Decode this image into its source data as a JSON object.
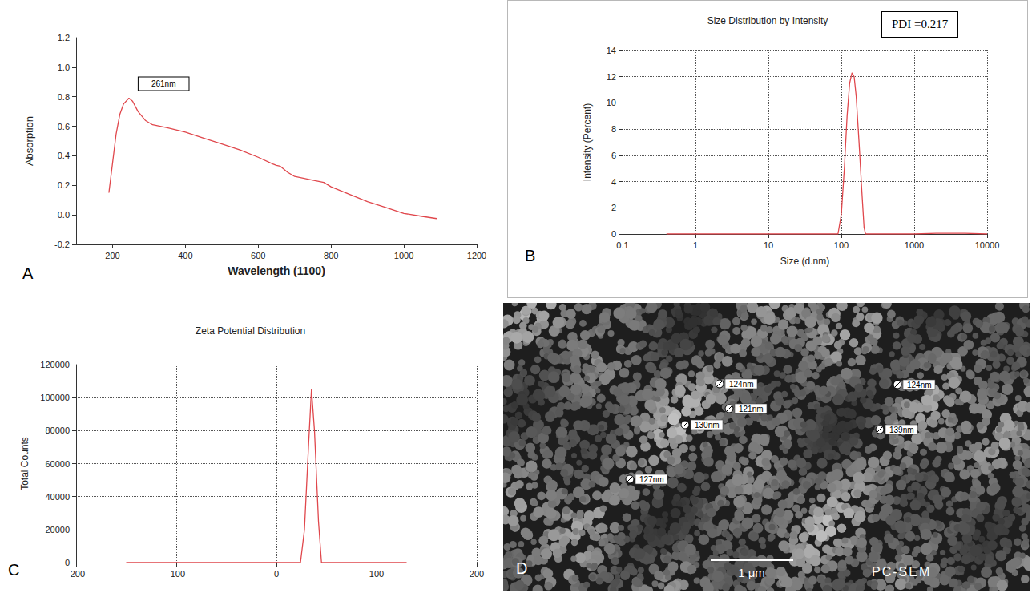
{
  "chart_data": [
    {
      "panel": "A",
      "type": "line",
      "xlabel": "Wavelength (1100)",
      "ylabel": "Absorption",
      "x": [
        190,
        200,
        210,
        220,
        230,
        245,
        255,
        270,
        290,
        310,
        350,
        400,
        450,
        500,
        550,
        600,
        640,
        650,
        660,
        680,
        700,
        750,
        780,
        800,
        850,
        900,
        950,
        1000,
        1050,
        1090
      ],
      "values": [
        0.15,
        0.35,
        0.55,
        0.68,
        0.75,
        0.79,
        0.77,
        0.7,
        0.64,
        0.61,
        0.59,
        0.56,
        0.52,
        0.48,
        0.44,
        0.39,
        0.345,
        0.335,
        0.33,
        0.29,
        0.26,
        0.235,
        0.22,
        0.19,
        0.14,
        0.09,
        0.05,
        0.01,
        -0.01,
        -0.025
      ],
      "color": "#e0474c",
      "xlim": [
        100,
        1200
      ],
      "xticks": [
        200,
        400,
        600,
        800,
        1000,
        1200
      ],
      "ylim": [
        -0.2,
        1.2
      ],
      "yticks": [
        -0.2,
        {
          "value": 0,
          "label": "0.0"
        },
        0.2,
        0.4,
        0.6,
        0.8,
        {
          "value": 1,
          "label": "1.0"
        },
        1.2
      ],
      "grid": false,
      "annotations": [
        "261nm"
      ]
    },
    {
      "panel": "B",
      "type": "line",
      "title": "Size Distribution by Intensity",
      "xlabel": "Size (d.nm)",
      "ylabel": "Intensity (Percent)",
      "x": [
        0.4,
        1,
        10,
        90,
        100,
        110,
        120,
        130,
        140,
        150,
        160,
        175,
        190,
        205,
        215,
        1000,
        2000,
        5000,
        10000
      ],
      "values": [
        0,
        0,
        0,
        0,
        1.5,
        5,
        9,
        11.5,
        12.3,
        12,
        10.5,
        7,
        3.5,
        0.5,
        0,
        0,
        0.05,
        0.05,
        0
      ],
      "color": "#e0474c",
      "log": "x",
      "xlim": [
        0.1,
        10000
      ],
      "xticks": [
        0.1,
        1,
        10,
        100,
        1000,
        10000
      ],
      "ylim": [
        0,
        14
      ],
      "yticks": [
        0,
        2,
        4,
        6,
        8,
        10,
        12,
        14
      ],
      "grid": true,
      "annotations": [
        "PDI =0.217"
      ]
    },
    {
      "panel": "C",
      "type": "line",
      "title": "Zeta Potential Distribution",
      "ylabel": "Total Counts",
      "x": [
        -150,
        24,
        28,
        32,
        35,
        38,
        42,
        45,
        130
      ],
      "values": [
        0,
        0,
        20000,
        70000,
        105000,
        80000,
        25000,
        0,
        0
      ],
      "color": "#e0474c",
      "xlim": [
        -200,
        200
      ],
      "xticks": [
        -200,
        -100,
        0,
        100,
        200
      ],
      "ylim": [
        0,
        120000
      ],
      "yticks": [
        0,
        20000,
        40000,
        60000,
        80000,
        100000,
        120000
      ],
      "grid": true
    }
  ],
  "image_panel": {
    "panel": "D",
    "measurements": [
      "124nm",
      "121nm",
      "130nm",
      "127nm",
      "124nm",
      "139nm"
    ],
    "scale_bar": "1 μm",
    "caption": "PC-SEM"
  }
}
